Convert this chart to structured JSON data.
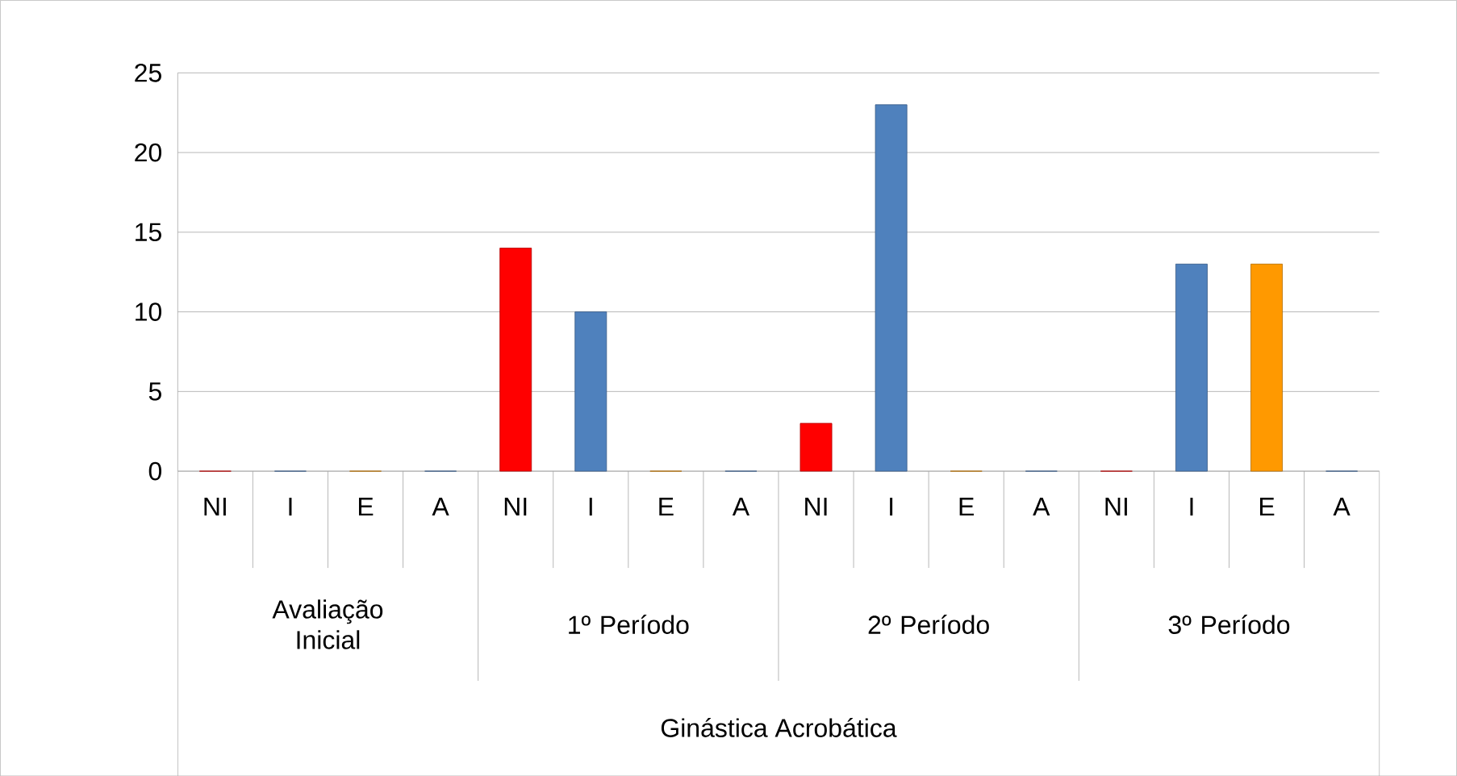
{
  "chart_data": {
    "type": "bar",
    "categories": [
      "NI",
      "I",
      "E",
      "A",
      "NI",
      "I",
      "E",
      "A",
      "NI",
      "I",
      "E",
      "A",
      "NI",
      "I",
      "E",
      "A"
    ],
    "values": [
      0,
      0,
      0,
      0,
      14,
      10,
      0,
      0,
      3,
      23,
      0,
      0,
      0,
      13,
      13,
      0
    ],
    "colors": [
      "#ff0000",
      "#4f81bd",
      "#ff9900",
      "#4f81bd",
      "#ff0000",
      "#4f81bd",
      "#ff9900",
      "#4f81bd",
      "#ff0000",
      "#4f81bd",
      "#ff9900",
      "#4f81bd",
      "#ff0000",
      "#4f81bd",
      "#ff9900",
      "#4f81bd"
    ],
    "ylim": [
      0,
      25
    ],
    "yticks": [
      0,
      5,
      10,
      15,
      20,
      25
    ],
    "grid": "y",
    "annotations": [
      "Avaliação Inicial",
      "1º Período",
      "2º Período",
      "3º Período",
      "Ginástica Acrobática"
    ]
  }
}
